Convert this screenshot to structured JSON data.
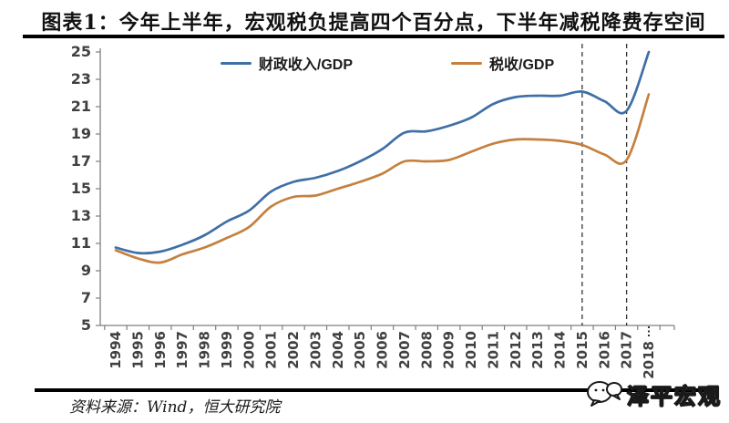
{
  "page": {
    "title": "图表1：今年上半年，宏观税负提高四个百分点，下半年减税降费存空间",
    "source_label": "资料来源：Wind，恒大研究院",
    "watermark": "泽平宏观"
  },
  "colors": {
    "fiscal_line": "#3E6FA5",
    "tax_line": "#C5803F",
    "axis": "#7f7f7f",
    "tick_text": "#404040",
    "dashed_line": "#333333",
    "rule": "#000000"
  },
  "chart_data": {
    "type": "line",
    "title": "图表1：今年上半年，宏观税负提高四个百分点，下半年减税降费存空间",
    "x_labels": [
      "1994",
      "1995",
      "1996",
      "1997",
      "1998",
      "1999",
      "2000",
      "2001",
      "2002",
      "2003",
      "2004",
      "2005",
      "2006",
      "2007",
      "2008",
      "2009",
      "2010",
      "2011",
      "2012",
      "2013",
      "2014",
      "2015",
      "2016",
      "2017",
      "2018"
    ],
    "series": [
      {
        "name": "财政收入/GDP",
        "color": "#3E6FA5",
        "values": [
          10.7,
          10.3,
          10.4,
          10.9,
          11.6,
          12.6,
          13.4,
          14.8,
          15.5,
          15.8,
          16.3,
          17.0,
          17.9,
          19.1,
          19.2,
          19.6,
          20.2,
          21.2,
          21.7,
          21.8,
          21.8,
          22.1,
          21.4,
          20.7,
          25.0
        ]
      },
      {
        "name": "税收/GDP",
        "color": "#C5803F",
        "values": [
          10.5,
          9.9,
          9.6,
          10.2,
          10.7,
          11.4,
          12.2,
          13.7,
          14.4,
          14.5,
          15.0,
          15.5,
          16.1,
          17.0,
          17.0,
          17.1,
          17.7,
          18.3,
          18.6,
          18.6,
          18.5,
          18.2,
          17.5,
          17.1,
          21.9
        ]
      }
    ],
    "ylim": [
      5,
      25
    ],
    "yticks": [
      25,
      23,
      21,
      19,
      17,
      15,
      13,
      11,
      9,
      7,
      5
    ],
    "grid": false,
    "legend_position": "top-center",
    "dashed_vlines_x": [
      "2015",
      "2017"
    ],
    "partial_marker_x": "2018"
  }
}
